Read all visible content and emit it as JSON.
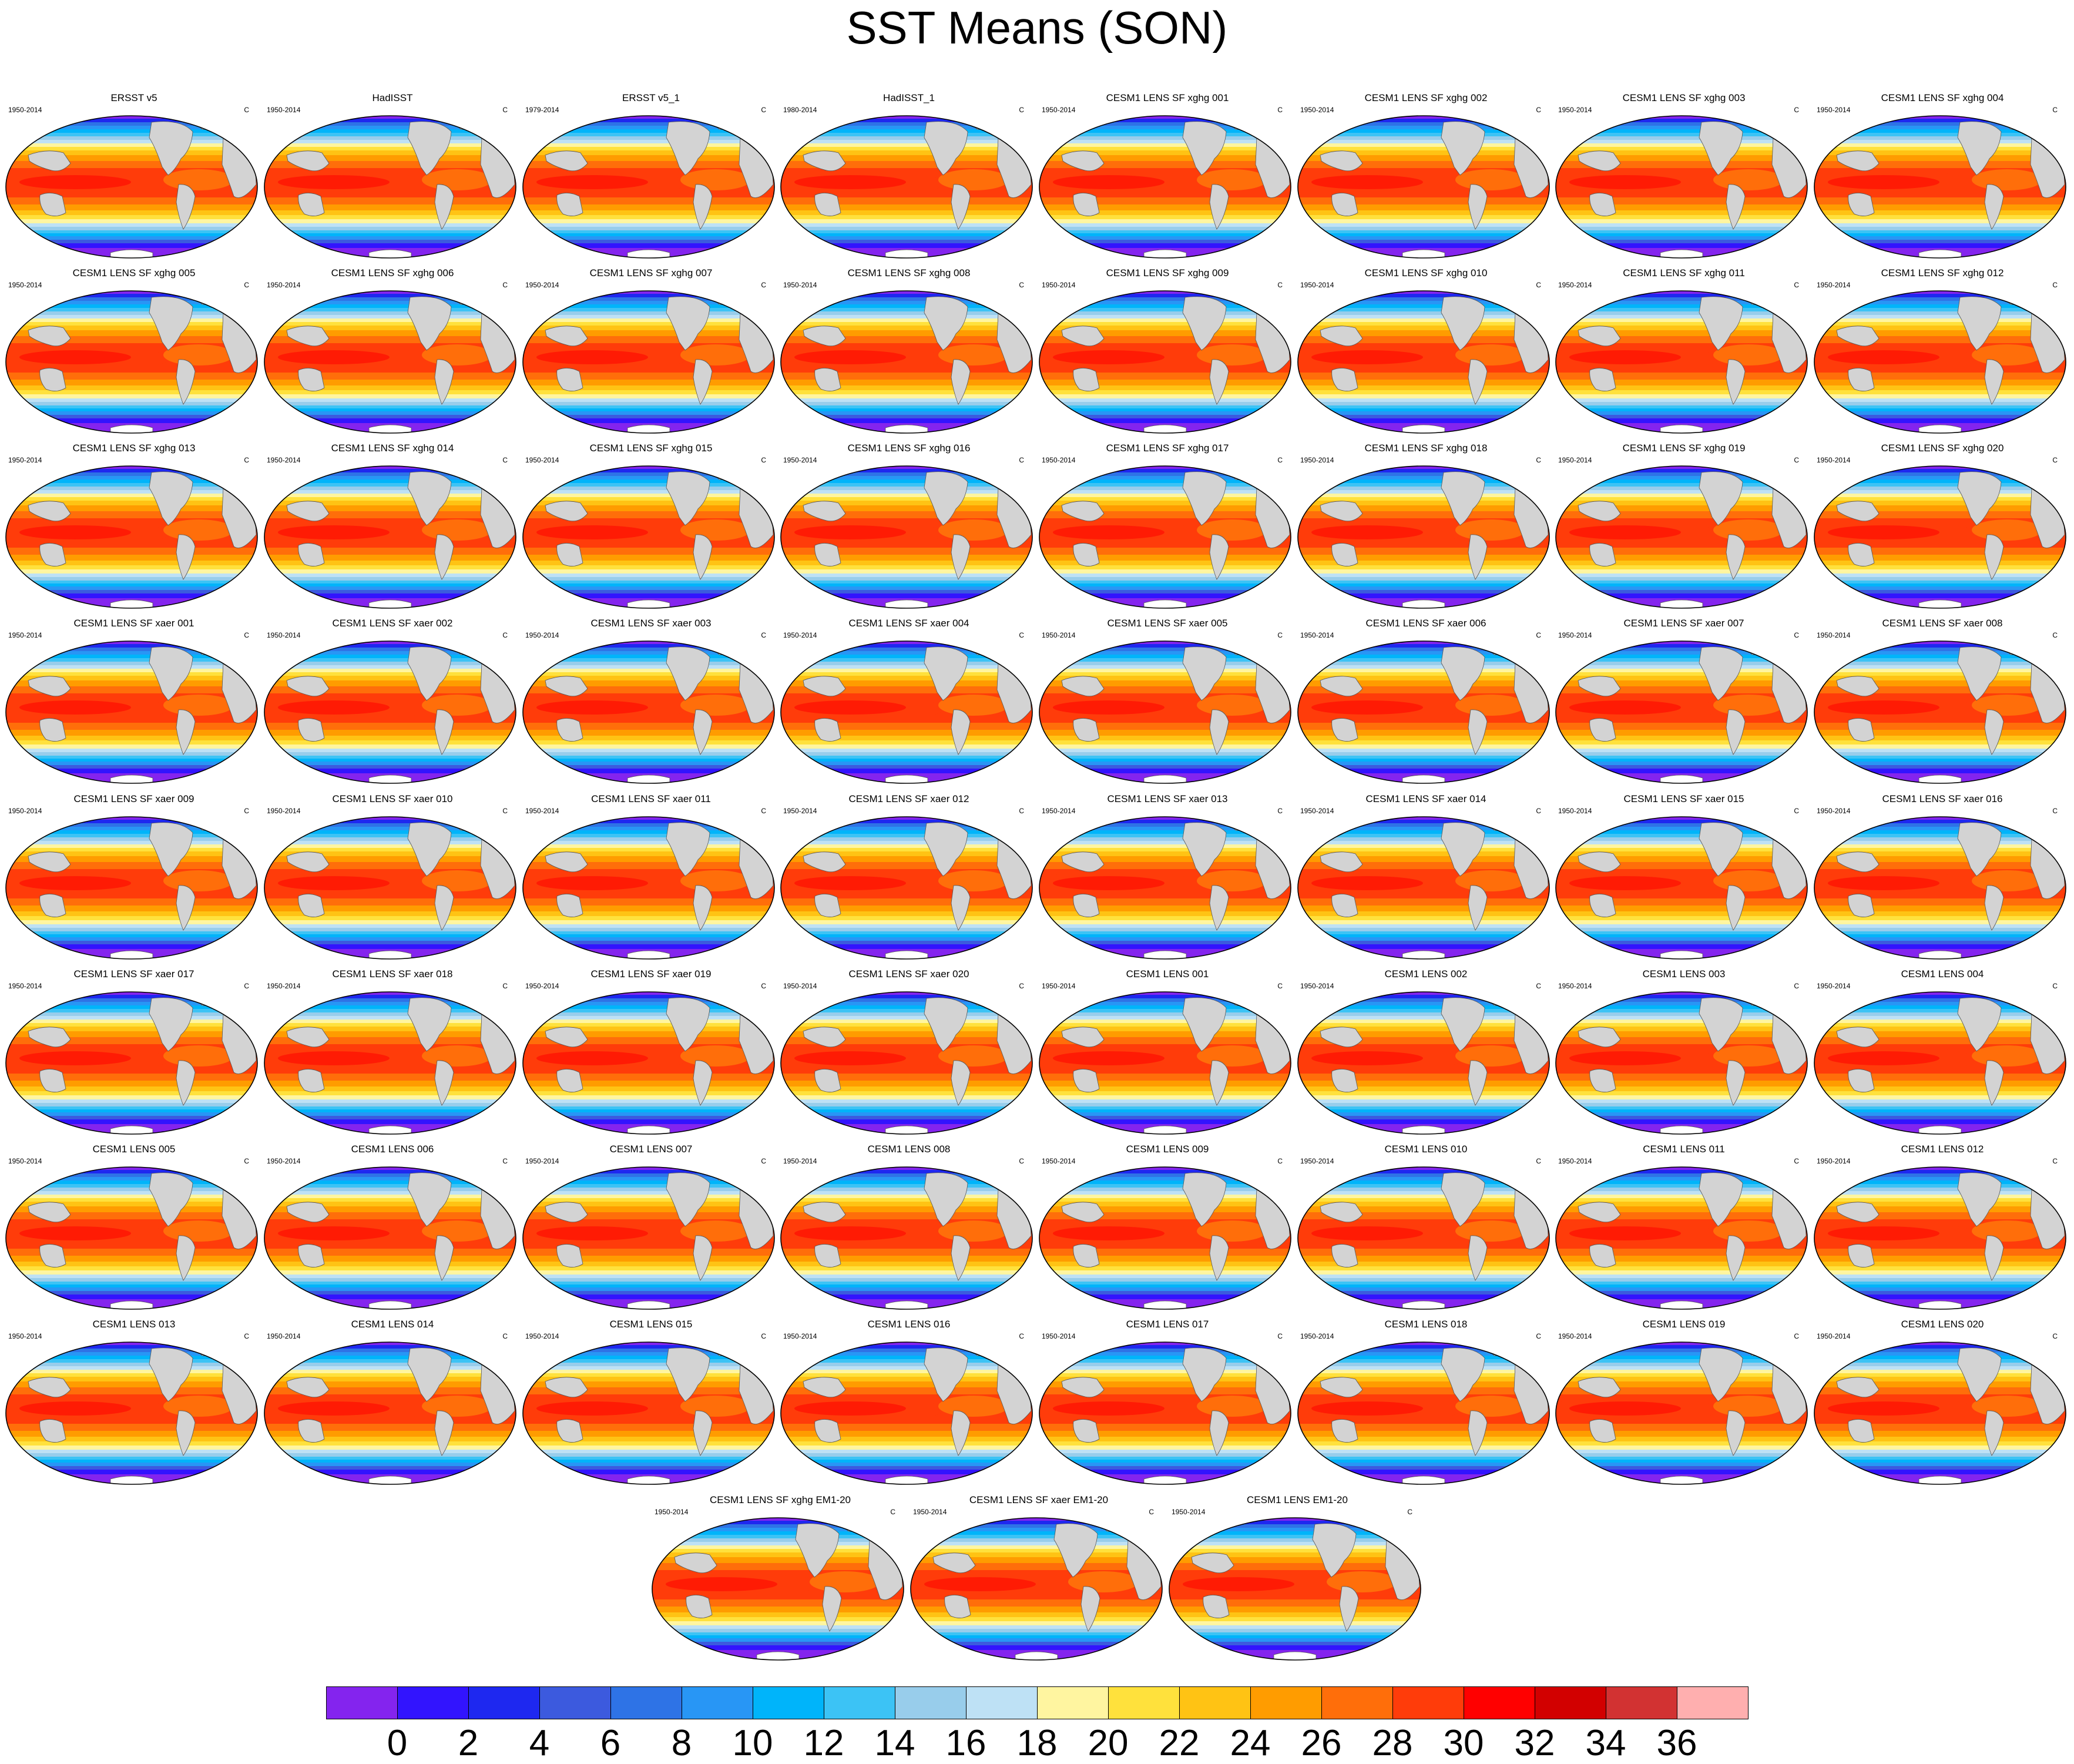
{
  "title": "SST Means (SON)",
  "chart_data": {
    "type": "heatmap",
    "title": "SST Means (SON)",
    "variable": "Sea surface temperature mean, September-October-November",
    "units": "C",
    "projection": "Robinson (Pacific-centered global maps)",
    "panels": [
      {
        "title": "ERSST v5",
        "years": "1950-2014",
        "units": "C"
      },
      {
        "title": "HadISST",
        "years": "1950-2014",
        "units": "C"
      },
      {
        "title": "ERSST v5_1",
        "years": "1979-2014",
        "units": "C"
      },
      {
        "title": "HadISST_1",
        "years": "1980-2014",
        "units": "C"
      },
      {
        "title": "CESM1 LENS SF xghg 001",
        "years": "1950-2014",
        "units": "C"
      },
      {
        "title": "CESM1 LENS SF xghg 002",
        "years": "1950-2014",
        "units": "C"
      },
      {
        "title": "CESM1 LENS SF xghg 003",
        "years": "1950-2014",
        "units": "C"
      },
      {
        "title": "CESM1 LENS SF xghg 004",
        "years": "1950-2014",
        "units": "C"
      },
      {
        "title": "CESM1 LENS SF xghg 005",
        "years": "1950-2014",
        "units": "C"
      },
      {
        "title": "CESM1 LENS SF xghg 006",
        "years": "1950-2014",
        "units": "C"
      },
      {
        "title": "CESM1 LENS SF xghg 007",
        "years": "1950-2014",
        "units": "C"
      },
      {
        "title": "CESM1 LENS SF xghg 008",
        "years": "1950-2014",
        "units": "C"
      },
      {
        "title": "CESM1 LENS SF xghg 009",
        "years": "1950-2014",
        "units": "C"
      },
      {
        "title": "CESM1 LENS SF xghg 010",
        "years": "1950-2014",
        "units": "C"
      },
      {
        "title": "CESM1 LENS SF xghg 011",
        "years": "1950-2014",
        "units": "C"
      },
      {
        "title": "CESM1 LENS SF xghg 012",
        "years": "1950-2014",
        "units": "C"
      },
      {
        "title": "CESM1 LENS SF xghg 013",
        "years": "1950-2014",
        "units": "C"
      },
      {
        "title": "CESM1 LENS SF xghg 014",
        "years": "1950-2014",
        "units": "C"
      },
      {
        "title": "CESM1 LENS SF xghg 015",
        "years": "1950-2014",
        "units": "C"
      },
      {
        "title": "CESM1 LENS SF xghg 016",
        "years": "1950-2014",
        "units": "C"
      },
      {
        "title": "CESM1 LENS SF xghg 017",
        "years": "1950-2014",
        "units": "C"
      },
      {
        "title": "CESM1 LENS SF xghg 018",
        "years": "1950-2014",
        "units": "C"
      },
      {
        "title": "CESM1 LENS SF xghg 019",
        "years": "1950-2014",
        "units": "C"
      },
      {
        "title": "CESM1 LENS SF xghg 020",
        "years": "1950-2014",
        "units": "C"
      },
      {
        "title": "CESM1 LENS SF xaer 001",
        "years": "1950-2014",
        "units": "C"
      },
      {
        "title": "CESM1 LENS SF xaer 002",
        "years": "1950-2014",
        "units": "C"
      },
      {
        "title": "CESM1 LENS SF xaer 003",
        "years": "1950-2014",
        "units": "C"
      },
      {
        "title": "CESM1 LENS SF xaer 004",
        "years": "1950-2014",
        "units": "C"
      },
      {
        "title": "CESM1 LENS SF xaer 005",
        "years": "1950-2014",
        "units": "C"
      },
      {
        "title": "CESM1 LENS SF xaer 006",
        "years": "1950-2014",
        "units": "C"
      },
      {
        "title": "CESM1 LENS SF xaer 007",
        "years": "1950-2014",
        "units": "C"
      },
      {
        "title": "CESM1 LENS SF xaer 008",
        "years": "1950-2014",
        "units": "C"
      },
      {
        "title": "CESM1 LENS SF xaer 009",
        "years": "1950-2014",
        "units": "C"
      },
      {
        "title": "CESM1 LENS SF xaer 010",
        "years": "1950-2014",
        "units": "C"
      },
      {
        "title": "CESM1 LENS SF xaer 011",
        "years": "1950-2014",
        "units": "C"
      },
      {
        "title": "CESM1 LENS SF xaer 012",
        "years": "1950-2014",
        "units": "C"
      },
      {
        "title": "CESM1 LENS SF xaer 013",
        "years": "1950-2014",
        "units": "C"
      },
      {
        "title": "CESM1 LENS SF xaer 014",
        "years": "1950-2014",
        "units": "C"
      },
      {
        "title": "CESM1 LENS SF xaer 015",
        "years": "1950-2014",
        "units": "C"
      },
      {
        "title": "CESM1 LENS SF xaer 016",
        "years": "1950-2014",
        "units": "C"
      },
      {
        "title": "CESM1 LENS SF xaer 017",
        "years": "1950-2014",
        "units": "C"
      },
      {
        "title": "CESM1 LENS SF xaer 018",
        "years": "1950-2014",
        "units": "C"
      },
      {
        "title": "CESM1 LENS SF xaer 019",
        "years": "1950-2014",
        "units": "C"
      },
      {
        "title": "CESM1 LENS SF xaer 020",
        "years": "1950-2014",
        "units": "C"
      },
      {
        "title": "CESM1 LENS 001",
        "years": "1950-2014",
        "units": "C"
      },
      {
        "title": "CESM1 LENS 002",
        "years": "1950-2014",
        "units": "C"
      },
      {
        "title": "CESM1 LENS 003",
        "years": "1950-2014",
        "units": "C"
      },
      {
        "title": "CESM1 LENS 004",
        "years": "1950-2014",
        "units": "C"
      },
      {
        "title": "CESM1 LENS 005",
        "years": "1950-2014",
        "units": "C"
      },
      {
        "title": "CESM1 LENS 006",
        "years": "1950-2014",
        "units": "C"
      },
      {
        "title": "CESM1 LENS 007",
        "years": "1950-2014",
        "units": "C"
      },
      {
        "title": "CESM1 LENS 008",
        "years": "1950-2014",
        "units": "C"
      },
      {
        "title": "CESM1 LENS 009",
        "years": "1950-2014",
        "units": "C"
      },
      {
        "title": "CESM1 LENS 010",
        "years": "1950-2014",
        "units": "C"
      },
      {
        "title": "CESM1 LENS 011",
        "years": "1950-2014",
        "units": "C"
      },
      {
        "title": "CESM1 LENS 012",
        "years": "1950-2014",
        "units": "C"
      },
      {
        "title": "CESM1 LENS 013",
        "years": "1950-2014",
        "units": "C"
      },
      {
        "title": "CESM1 LENS 014",
        "years": "1950-2014",
        "units": "C"
      },
      {
        "title": "CESM1 LENS 015",
        "years": "1950-2014",
        "units": "C"
      },
      {
        "title": "CESM1 LENS 016",
        "years": "1950-2014",
        "units": "C"
      },
      {
        "title": "CESM1 LENS 017",
        "years": "1950-2014",
        "units": "C"
      },
      {
        "title": "CESM1 LENS 018",
        "years": "1950-2014",
        "units": "C"
      },
      {
        "title": "CESM1 LENS 019",
        "years": "1950-2014",
        "units": "C"
      },
      {
        "title": "CESM1 LENS 020",
        "years": "1950-2014",
        "units": "C"
      },
      {
        "title": "CESM1 LENS SF xghg EM1-20",
        "years": "1950-2014",
        "units": "C"
      },
      {
        "title": "CESM1 LENS SF xaer EM1-20",
        "years": "1950-2014",
        "units": "C"
      },
      {
        "title": "CESM1 LENS EM1-20",
        "years": "1950-2014",
        "units": "C"
      }
    ],
    "colorbar": {
      "levels": [
        0,
        2,
        4,
        6,
        8,
        10,
        12,
        14,
        16,
        18,
        20,
        22,
        24,
        26,
        28,
        30,
        32,
        34,
        36
      ],
      "labels": [
        "0",
        "2",
        "4",
        "6",
        "8",
        "10",
        "12",
        "14",
        "16",
        "18",
        "20",
        "22",
        "24",
        "26",
        "28",
        "30",
        "32",
        "34",
        "36"
      ],
      "colors": [
        "#8424ee",
        "#3214fe",
        "#1e28f0",
        "#3c5ade",
        "#2e73e6",
        "#2896f5",
        "#00b4fa",
        "#3cc3f5",
        "#98cdeb",
        "#bee1f5",
        "#fff5a0",
        "#ffe13c",
        "#ffc314",
        "#ff9c00",
        "#ff6e0a",
        "#ff3c0a",
        "#ff0000",
        "#d20000",
        "#d23232",
        "#ffafaf"
      ]
    },
    "land_color": "#d3d3d3"
  }
}
